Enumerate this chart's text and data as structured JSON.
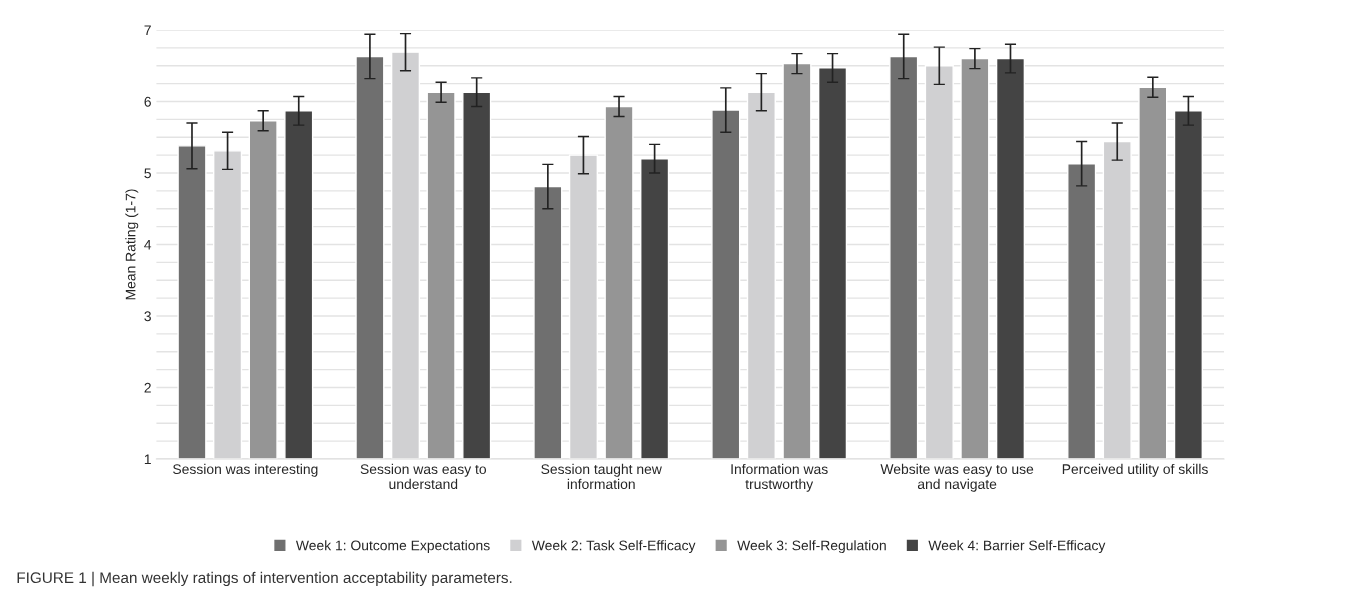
{
  "chart_data": {
    "type": "bar",
    "categories": [
      "Session was interesting",
      "Session was easy to\nunderstand",
      "Session taught new\ninformation",
      "Information was\ntrustworthy",
      "Website was easy to use\nand navigate",
      "Perceived utility of skills"
    ],
    "ylabel": "Mean Rating (1-7)",
    "ylim": [
      1,
      7
    ],
    "yticks": [
      1,
      {
        "value": 1.25,
        "label": null
      },
      {
        "value": 1.5,
        "label": null
      },
      {
        "value": 1.75,
        "label": null
      },
      2,
      {
        "value": 2.25,
        "label": null
      },
      {
        "value": 2.5,
        "label": null
      },
      {
        "value": 2.75,
        "label": null
      },
      3,
      {
        "value": 3.25,
        "label": null
      },
      {
        "value": 3.5,
        "label": null
      },
      {
        "value": 3.75,
        "label": null
      },
      4,
      {
        "value": 4.25,
        "label": null
      },
      {
        "value": 4.5,
        "label": null
      },
      {
        "value": 4.75,
        "label": null
      },
      5,
      {
        "value": 5.25,
        "label": null
      },
      {
        "value": 5.5,
        "label": null
      },
      {
        "value": 5.75,
        "label": null
      },
      6,
      {
        "value": 6.25,
        "label": null
      },
      {
        "value": 6.5,
        "label": null
      },
      {
        "value": 6.75,
        "label": null
      },
      7
    ],
    "grid": "y",
    "legend": "bottom",
    "series": [
      {
        "name": "Week 1: Outcome Expectations",
        "color": "#6f6f6f",
        "values": [
          5.38,
          6.63,
          4.81,
          5.88,
          6.63,
          5.13
        ],
        "errors": [
          0.32,
          0.31,
          0.31,
          0.31,
          0.31,
          0.31
        ]
      },
      {
        "name": "Week 2: Task Self-Efficacy",
        "color": "#d0d0d2",
        "values": [
          5.31,
          6.69,
          5.25,
          6.13,
          6.5,
          5.44
        ],
        "errors": [
          0.26,
          0.26,
          0.26,
          0.26,
          0.26,
          0.26
        ]
      },
      {
        "name": "Week 3: Self-Regulation",
        "color": "#959595",
        "values": [
          5.73,
          6.13,
          5.93,
          6.53,
          6.6,
          6.2
        ],
        "errors": [
          0.14,
          0.14,
          0.14,
          0.14,
          0.14,
          0.14
        ]
      },
      {
        "name": "Week 4: Barrier Self-Efficacy",
        "color": "#444444",
        "values": [
          5.87,
          6.13,
          5.2,
          6.47,
          6.6,
          5.87
        ],
        "errors": [
          0.2,
          0.2,
          0.2,
          0.2,
          0.2,
          0.2
        ]
      }
    ],
    "annotations": [
      "FIGURE 1 | Mean weekly ratings of intervention acceptability parameters."
    ]
  }
}
